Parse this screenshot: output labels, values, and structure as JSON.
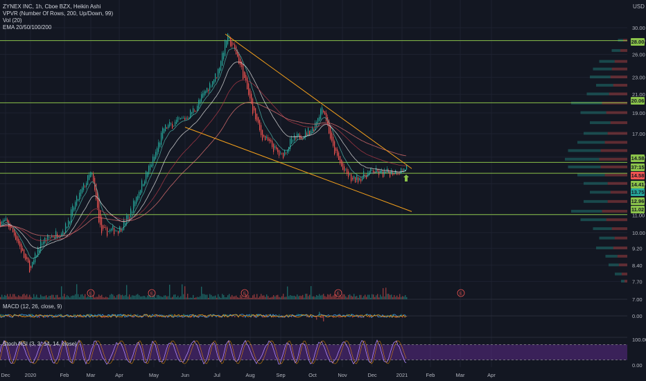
{
  "legend": {
    "symbol": "ZYNEX INC, 1h, Cboe BZX, Heikin Ashi",
    "vpvr": "VPVR (Number Of Rows, 200, Up/Down, 99)",
    "vol": "Vol (20)",
    "ema": "EMA 20/50/100/200"
  },
  "macd_label": "MACD (12, 26, close, 9)",
  "rsi_label": "Stoch RSI (3, 3, 14, 14, close)",
  "currency": "USD",
  "colors": {
    "bg": "#131722",
    "up": "#26a69a",
    "down": "#ef5350",
    "trend": "#f7a21b",
    "hline": "#8bc34a",
    "ema_red": "#b23a48",
    "ema_teal": "#4db6ac",
    "rsi_line": "#b388ff",
    "rsi_band": "#5b2a86",
    "grid": "#1e2230"
  },
  "chart_data": {
    "type": "candlestick",
    "title": "ZYNEX INC, 1h, Cboe BZX, Heikin Ashi",
    "price_axis": {
      "scale": "log",
      "ticks": [
        30.0,
        28.0,
        26.0,
        23.0,
        21.0,
        19.0,
        17.0,
        15.0,
        13.0,
        11.0,
        10.0,
        9.2,
        8.4,
        7.7,
        7.0
      ]
    },
    "x_ticks": [
      "Dec",
      "2020",
      "Feb",
      "Mar",
      "Apr",
      "May",
      "Jun",
      "Jul",
      "Aug",
      "Sep",
      "Oct",
      "Nov",
      "Dec",
      "2021",
      "Feb",
      "Mar",
      "Apr"
    ],
    "horizontal_levels": [
      28.0,
      20.06,
      14.58,
      13.75,
      11.02
    ],
    "price_tags": [
      {
        "value": "28.00",
        "color": "#8bc34a"
      },
      {
        "value": "20.06",
        "color": "#8bc34a"
      },
      {
        "value": "14.58",
        "color": "#8bc34a"
      },
      {
        "value": "37:15",
        "color": "#8bc34a"
      },
      {
        "value": "14.58",
        "color": "#ef5350"
      },
      {
        "value": "14.41",
        "color": "#8bc34a"
      },
      {
        "value": "13.75",
        "color": "#26a69a"
      },
      {
        "value": "12.96",
        "color": "#8bc34a"
      },
      {
        "value": "11.02",
        "color": "#8bc34a"
      }
    ],
    "trendlines": [
      {
        "from": [
          "Jul",
          29.0
        ],
        "to": [
          "2021",
          14.1
        ]
      },
      {
        "from": [
          "Jun",
          17.6
        ],
        "to": [
          "2021",
          11.2
        ]
      }
    ],
    "price_path": [
      [
        "Dec",
        10.6
      ],
      [
        "Dec",
        9.8
      ],
      [
        "Dec",
        8.6
      ],
      [
        "2020",
        8.2
      ],
      [
        "2020",
        9.5
      ],
      [
        "Feb",
        10.2
      ],
      [
        "Feb",
        11.6
      ],
      [
        "Mar",
        13.8
      ],
      [
        "Mar",
        10.0
      ],
      [
        "Apr",
        10.2
      ],
      [
        "Apr",
        11.0
      ],
      [
        "May",
        15.0
      ],
      [
        "May",
        17.5
      ],
      [
        "Jun",
        18.5
      ],
      [
        "Jun",
        19.5
      ],
      [
        "Jul",
        23.5
      ],
      [
        "Jul",
        28.6
      ],
      [
        "Jul",
        26.0
      ],
      [
        "Aug",
        20.0
      ],
      [
        "Aug",
        17.0
      ],
      [
        "Sep",
        15.0
      ],
      [
        "Sep",
        16.3
      ],
      [
        "Oct",
        17.5
      ],
      [
        "Oct",
        19.8
      ],
      [
        "Oct",
        15.8
      ],
      [
        "Nov",
        14.0
      ],
      [
        "Nov",
        13.2
      ],
      [
        "Dec",
        13.9
      ],
      [
        "Dec",
        13.7
      ],
      [
        "2021",
        14.0
      ],
      [
        "2021",
        14.5
      ]
    ],
    "vpvr_bins": [
      {
        "price": 28.0,
        "size": 0.15
      },
      {
        "price": 26.5,
        "size": 0.25
      },
      {
        "price": 25.0,
        "size": 0.45
      },
      {
        "price": 24.0,
        "size": 0.55
      },
      {
        "price": 23.0,
        "size": 0.6
      },
      {
        "price": 22.0,
        "size": 0.5
      },
      {
        "price": 21.0,
        "size": 0.65
      },
      {
        "price": 20.0,
        "size": 0.9
      },
      {
        "price": 19.0,
        "size": 0.75
      },
      {
        "price": 18.0,
        "size": 0.6
      },
      {
        "price": 17.0,
        "size": 0.7
      },
      {
        "price": 16.2,
        "size": 0.8
      },
      {
        "price": 15.5,
        "size": 0.95
      },
      {
        "price": 14.8,
        "size": 1.0
      },
      {
        "price": 14.2,
        "size": 0.95
      },
      {
        "price": 13.6,
        "size": 0.8
      },
      {
        "price": 13.0,
        "size": 0.7
      },
      {
        "price": 12.4,
        "size": 0.6
      },
      {
        "price": 11.8,
        "size": 0.7
      },
      {
        "price": 11.2,
        "size": 0.9
      },
      {
        "price": 10.7,
        "size": 0.75
      },
      {
        "price": 10.2,
        "size": 0.55
      },
      {
        "price": 9.7,
        "size": 0.45
      },
      {
        "price": 9.2,
        "size": 0.5
      },
      {
        "price": 8.8,
        "size": 0.35
      },
      {
        "price": 8.4,
        "size": 0.3
      },
      {
        "price": 8.0,
        "size": 0.2
      },
      {
        "price": 7.7,
        "size": 0.1
      }
    ],
    "earnings_markers": [
      "Jan",
      "May",
      "Aug",
      "Nov",
      "Mar"
    ],
    "earnings_label": "E",
    "macd_axis": [
      "0.00"
    ],
    "rsi_axis": [
      "100.00",
      "0.00"
    ]
  }
}
